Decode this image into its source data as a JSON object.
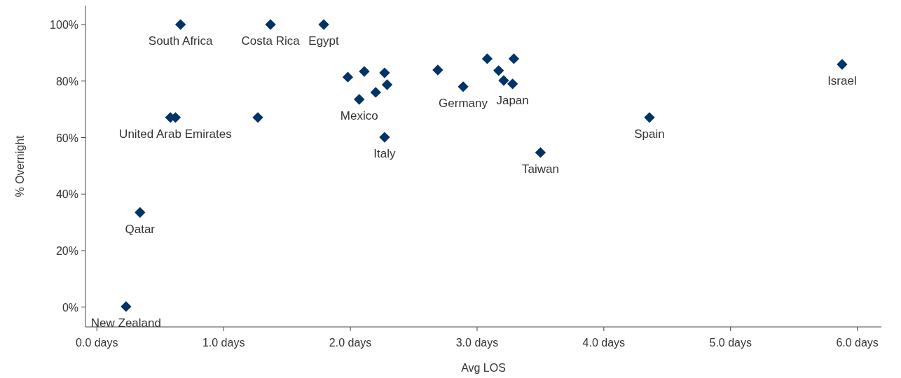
{
  "chart_data": {
    "type": "scatter",
    "xlabel": "Avg LOS",
    "ylabel": "% Overnight",
    "x": [
      0.23,
      0.34,
      0.58,
      0.62,
      0.66,
      1.27,
      1.37,
      1.79,
      1.98,
      2.07,
      2.11,
      2.2,
      2.27,
      2.29,
      2.27,
      2.69,
      2.89,
      3.08,
      3.17,
      3.21,
      3.28,
      3.29,
      3.5,
      4.36,
      5.88
    ],
    "values": [
      0.2,
      33.5,
      67.1,
      67.1,
      100,
      67.1,
      100,
      100,
      81.4,
      73.5,
      83.4,
      76.0,
      82.9,
      78.7,
      60.1,
      83.9,
      78.0,
      87.9,
      83.7,
      80.2,
      79.0,
      87.9,
      54.7,
      67.1,
      85.9
    ],
    "color": "#003366",
    "marker": "diamond",
    "xlim": [
      -0.09,
      6.19
    ],
    "xticks": [
      {
        "value": 0,
        "label": "0.0 days"
      },
      {
        "value": 1,
        "label": "1.0 days"
      },
      {
        "value": 2,
        "label": "2.0 days"
      },
      {
        "value": 3,
        "label": "3.0 days"
      },
      {
        "value": 4,
        "label": "4.0 days"
      },
      {
        "value": 5,
        "label": "5.0 days"
      },
      {
        "value": 6,
        "label": "6.0 days"
      }
    ],
    "ylim": [
      -7,
      106.7
    ],
    "yticks": [
      {
        "value": 0,
        "label": "0%"
      },
      {
        "value": 20,
        "label": "20%"
      },
      {
        "value": 40,
        "label": "40%"
      },
      {
        "value": 60,
        "label": "60%"
      },
      {
        "value": 80,
        "label": "80%"
      },
      {
        "value": 100,
        "label": "100%"
      }
    ],
    "grid": false,
    "annotations": [
      {
        "text": "New Zealand",
        "x": 0.23,
        "y": 0.2
      },
      {
        "text": "Qatar",
        "x": 0.34,
        "y": 33.5
      },
      {
        "text": "United Arab Emirates",
        "x": 0.62,
        "y": 67.1
      },
      {
        "text": "South Africa",
        "x": 0.66,
        "y": 100
      },
      {
        "text": "Costa Rica",
        "x": 1.37,
        "y": 100
      },
      {
        "text": "Egypt",
        "x": 1.79,
        "y": 100
      },
      {
        "text": "Mexico",
        "x": 2.07,
        "y": 73.5
      },
      {
        "text": "Italy",
        "x": 2.27,
        "y": 60.1
      },
      {
        "text": "Germany",
        "x": 2.89,
        "y": 78.0
      },
      {
        "text": "Japan",
        "x": 3.28,
        "y": 79.0
      },
      {
        "text": "Taiwan",
        "x": 3.5,
        "y": 54.7
      },
      {
        "text": "Spain",
        "x": 4.36,
        "y": 67.1
      },
      {
        "text": "Israel",
        "x": 5.88,
        "y": 85.9
      }
    ]
  }
}
